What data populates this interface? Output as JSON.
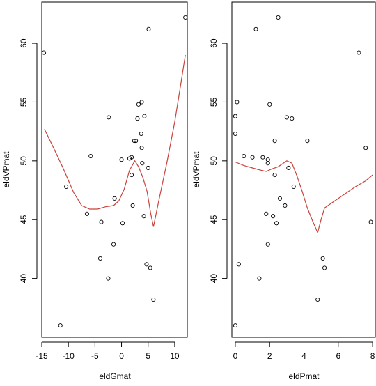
{
  "chart_data": [
    {
      "type": "scatter",
      "xlabel": "eldGmat",
      "ylabel": "eldVPmat",
      "xlim": [
        -15,
        12.5
      ],
      "ylim": [
        35,
        63.5
      ],
      "xticks": [
        -15,
        -10,
        -5,
        0,
        5,
        10
      ],
      "yticks": [
        40,
        45,
        50,
        55,
        60
      ],
      "xtick_labels": [
        "-15",
        "-10",
        "-5",
        "0",
        "5",
        "10"
      ],
      "ytick_labels": [
        "40",
        "45",
        "50",
        "55",
        "60"
      ],
      "points": [
        [
          -14.6,
          59.2
        ],
        [
          -11.5,
          36.0
        ],
        [
          -10.4,
          47.8
        ],
        [
          -6.5,
          45.5
        ],
        [
          -5.8,
          50.4
        ],
        [
          -3.8,
          44.8
        ],
        [
          -4.0,
          41.7
        ],
        [
          -2.5,
          40.0
        ],
        [
          -2.4,
          53.7
        ],
        [
          -1.5,
          42.9
        ],
        [
          -1.3,
          46.8
        ],
        [
          0.0,
          50.1
        ],
        [
          0.2,
          44.7
        ],
        [
          1.5,
          50.2
        ],
        [
          1.9,
          50.3
        ],
        [
          1.9,
          48.8
        ],
        [
          2.1,
          46.2
        ],
        [
          2.4,
          51.7
        ],
        [
          2.7,
          51.7
        ],
        [
          3.0,
          53.6
        ],
        [
          3.2,
          54.8
        ],
        [
          3.8,
          55.0
        ],
        [
          3.7,
          52.3
        ],
        [
          3.8,
          51.1
        ],
        [
          3.9,
          49.8
        ],
        [
          4.2,
          45.3
        ],
        [
          4.3,
          53.8
        ],
        [
          4.7,
          41.2
        ],
        [
          5.0,
          49.4
        ],
        [
          5.1,
          61.2
        ],
        [
          5.4,
          40.9
        ],
        [
          6.0,
          38.2
        ],
        [
          12.0,
          62.2
        ]
      ],
      "smooth_line": [
        [
          -14.5,
          52.7
        ],
        [
          -13,
          51.3
        ],
        [
          -11,
          49.4
        ],
        [
          -9,
          47.3
        ],
        [
          -7.5,
          46.2
        ],
        [
          -6,
          45.9
        ],
        [
          -4.5,
          45.9
        ],
        [
          -3,
          46.1
        ],
        [
          -1.5,
          46.2
        ],
        [
          -0.5,
          46.6
        ],
        [
          0.5,
          47.6
        ],
        [
          1.5,
          49.2
        ],
        [
          2.5,
          50.0
        ],
        [
          3.2,
          49.5
        ],
        [
          4.0,
          48.6
        ],
        [
          4.8,
          47.4
        ],
        [
          5.5,
          45.5
        ],
        [
          6.0,
          44.4
        ],
        [
          7.0,
          46.6
        ],
        [
          8.5,
          49.8
        ],
        [
          10,
          53.3
        ],
        [
          11,
          56.1
        ],
        [
          12,
          59.0
        ]
      ],
      "line_color": "#c8433b",
      "grid": false
    },
    {
      "type": "scatter",
      "xlabel": "eldPmat",
      "ylabel": "eldVPmat",
      "xlim": [
        -0.2,
        8.2
      ],
      "ylim": [
        35,
        63.5
      ],
      "xticks": [
        0,
        2,
        4,
        6,
        8
      ],
      "yticks": [
        40,
        45,
        50,
        55,
        60
      ],
      "xtick_labels": [
        "0",
        "2",
        "4",
        "6",
        "8"
      ],
      "ytick_labels": [
        "40",
        "45",
        "50",
        "55",
        "60"
      ],
      "points": [
        [
          0.0,
          36.0
        ],
        [
          0.0,
          52.3
        ],
        [
          0.0,
          53.8
        ],
        [
          0.1,
          55.0
        ],
        [
          0.2,
          41.2
        ],
        [
          0.5,
          50.4
        ],
        [
          1.0,
          50.3
        ],
        [
          1.2,
          61.2
        ],
        [
          1.4,
          40.0
        ],
        [
          1.6,
          50.3
        ],
        [
          1.8,
          45.5
        ],
        [
          1.9,
          42.9
        ],
        [
          1.9,
          50.1
        ],
        [
          1.9,
          49.8
        ],
        [
          2.0,
          54.8
        ],
        [
          2.2,
          45.3
        ],
        [
          2.3,
          51.7
        ],
        [
          2.3,
          48.8
        ],
        [
          2.4,
          44.7
        ],
        [
          2.5,
          62.2
        ],
        [
          2.6,
          46.8
        ],
        [
          2.9,
          46.2
        ],
        [
          3.0,
          53.7
        ],
        [
          3.1,
          49.4
        ],
        [
          3.3,
          53.6
        ],
        [
          3.4,
          47.8
        ],
        [
          4.2,
          51.7
        ],
        [
          4.8,
          38.2
        ],
        [
          5.1,
          41.7
        ],
        [
          5.2,
          40.9
        ],
        [
          7.2,
          59.2
        ],
        [
          7.6,
          51.1
        ],
        [
          7.9,
          44.8
        ]
      ],
      "smooth_line": [
        [
          0.0,
          49.9
        ],
        [
          0.5,
          49.6
        ],
        [
          1.0,
          49.4
        ],
        [
          1.5,
          49.2
        ],
        [
          1.8,
          49.1
        ],
        [
          2.1,
          49.3
        ],
        [
          2.5,
          49.5
        ],
        [
          2.8,
          49.8
        ],
        [
          3.0,
          50.0
        ],
        [
          3.3,
          49.8
        ],
        [
          3.6,
          48.7
        ],
        [
          3.9,
          47.4
        ],
        [
          4.2,
          46.0
        ],
        [
          4.5,
          44.9
        ],
        [
          4.8,
          43.9
        ],
        [
          5.0,
          45.0
        ],
        [
          5.2,
          46.0
        ],
        [
          5.6,
          46.4
        ],
        [
          6.2,
          47.0
        ],
        [
          7.0,
          47.8
        ],
        [
          7.6,
          48.3
        ],
        [
          8.0,
          48.8
        ]
      ],
      "line_color": "#c8433b",
      "grid": false
    }
  ]
}
